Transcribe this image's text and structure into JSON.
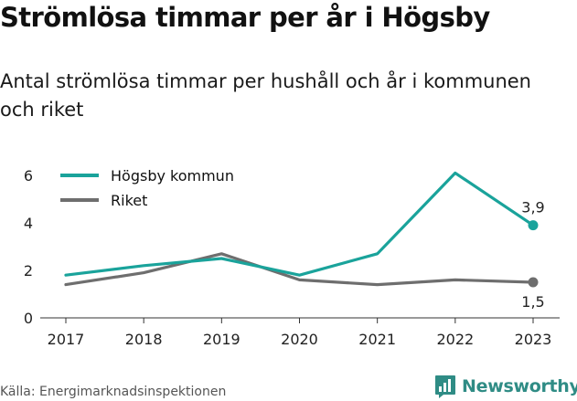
{
  "page": {
    "title": "Strömlösa timmar per år i Högsby",
    "subtitle": "Antal strömlösa timmar per hushåll och år i kommunen och riket",
    "source": "Källa: Energimarknadsinspektionen",
    "brand": "Newsworthy",
    "brand_icon": "newsworthy-logo-icon",
    "brand_color": "#2f8c85"
  },
  "chart_data": {
    "type": "line",
    "x": [
      "2017",
      "2018",
      "2019",
      "2020",
      "2021",
      "2022",
      "2023"
    ],
    "series": [
      {
        "name": "Högsby kommun",
        "color": "#1aa39b",
        "values": [
          1.8,
          2.2,
          2.5,
          1.8,
          2.7,
          6.1,
          3.9
        ],
        "end_label": "3,9"
      },
      {
        "name": "Riket",
        "color": "#6e6e6e",
        "values": [
          1.4,
          1.9,
          2.7,
          1.6,
          1.4,
          1.6,
          1.5
        ],
        "end_label": "1,5"
      }
    ],
    "yticks": [
      "0",
      "2",
      "4",
      "6"
    ],
    "ylim": [
      0,
      6.6
    ],
    "grid": false,
    "legend": "top-left"
  }
}
